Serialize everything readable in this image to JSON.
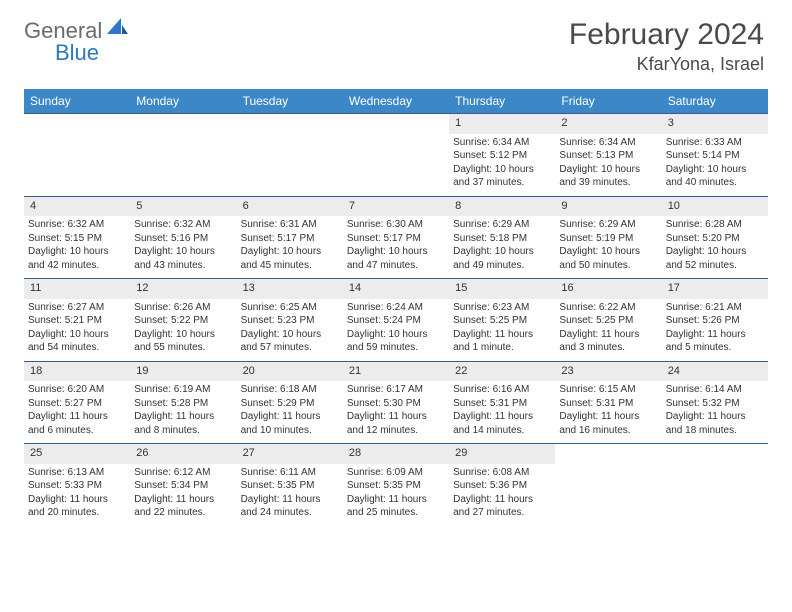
{
  "logo": {
    "text1": "General",
    "text2": "Blue"
  },
  "title": "February 2024",
  "location": "KfarYona, Israel",
  "colors": {
    "header_bg": "#3b87c8",
    "header_text": "#ffffff",
    "daynum_bg": "#ececec",
    "border": "#2f5f8f",
    "logo_gray": "#6b6b6b",
    "logo_blue": "#2b78c4"
  },
  "day_headers": [
    "Sunday",
    "Monday",
    "Tuesday",
    "Wednesday",
    "Thursday",
    "Friday",
    "Saturday"
  ],
  "weeks": [
    {
      "nums": [
        "",
        "",
        "",
        "",
        "1",
        "2",
        "3"
      ],
      "details": [
        null,
        null,
        null,
        null,
        {
          "sunrise": "Sunrise: 6:34 AM",
          "sunset": "Sunset: 5:12 PM",
          "day1": "Daylight: 10 hours",
          "day2": "and 37 minutes."
        },
        {
          "sunrise": "Sunrise: 6:34 AM",
          "sunset": "Sunset: 5:13 PM",
          "day1": "Daylight: 10 hours",
          "day2": "and 39 minutes."
        },
        {
          "sunrise": "Sunrise: 6:33 AM",
          "sunset": "Sunset: 5:14 PM",
          "day1": "Daylight: 10 hours",
          "day2": "and 40 minutes."
        }
      ]
    },
    {
      "nums": [
        "4",
        "5",
        "6",
        "7",
        "8",
        "9",
        "10"
      ],
      "details": [
        {
          "sunrise": "Sunrise: 6:32 AM",
          "sunset": "Sunset: 5:15 PM",
          "day1": "Daylight: 10 hours",
          "day2": "and 42 minutes."
        },
        {
          "sunrise": "Sunrise: 6:32 AM",
          "sunset": "Sunset: 5:16 PM",
          "day1": "Daylight: 10 hours",
          "day2": "and 43 minutes."
        },
        {
          "sunrise": "Sunrise: 6:31 AM",
          "sunset": "Sunset: 5:17 PM",
          "day1": "Daylight: 10 hours",
          "day2": "and 45 minutes."
        },
        {
          "sunrise": "Sunrise: 6:30 AM",
          "sunset": "Sunset: 5:17 PM",
          "day1": "Daylight: 10 hours",
          "day2": "and 47 minutes."
        },
        {
          "sunrise": "Sunrise: 6:29 AM",
          "sunset": "Sunset: 5:18 PM",
          "day1": "Daylight: 10 hours",
          "day2": "and 49 minutes."
        },
        {
          "sunrise": "Sunrise: 6:29 AM",
          "sunset": "Sunset: 5:19 PM",
          "day1": "Daylight: 10 hours",
          "day2": "and 50 minutes."
        },
        {
          "sunrise": "Sunrise: 6:28 AM",
          "sunset": "Sunset: 5:20 PM",
          "day1": "Daylight: 10 hours",
          "day2": "and 52 minutes."
        }
      ]
    },
    {
      "nums": [
        "11",
        "12",
        "13",
        "14",
        "15",
        "16",
        "17"
      ],
      "details": [
        {
          "sunrise": "Sunrise: 6:27 AM",
          "sunset": "Sunset: 5:21 PM",
          "day1": "Daylight: 10 hours",
          "day2": "and 54 minutes."
        },
        {
          "sunrise": "Sunrise: 6:26 AM",
          "sunset": "Sunset: 5:22 PM",
          "day1": "Daylight: 10 hours",
          "day2": "and 55 minutes."
        },
        {
          "sunrise": "Sunrise: 6:25 AM",
          "sunset": "Sunset: 5:23 PM",
          "day1": "Daylight: 10 hours",
          "day2": "and 57 minutes."
        },
        {
          "sunrise": "Sunrise: 6:24 AM",
          "sunset": "Sunset: 5:24 PM",
          "day1": "Daylight: 10 hours",
          "day2": "and 59 minutes."
        },
        {
          "sunrise": "Sunrise: 6:23 AM",
          "sunset": "Sunset: 5:25 PM",
          "day1": "Daylight: 11 hours",
          "day2": "and 1 minute."
        },
        {
          "sunrise": "Sunrise: 6:22 AM",
          "sunset": "Sunset: 5:25 PM",
          "day1": "Daylight: 11 hours",
          "day2": "and 3 minutes."
        },
        {
          "sunrise": "Sunrise: 6:21 AM",
          "sunset": "Sunset: 5:26 PM",
          "day1": "Daylight: 11 hours",
          "day2": "and 5 minutes."
        }
      ]
    },
    {
      "nums": [
        "18",
        "19",
        "20",
        "21",
        "22",
        "23",
        "24"
      ],
      "details": [
        {
          "sunrise": "Sunrise: 6:20 AM",
          "sunset": "Sunset: 5:27 PM",
          "day1": "Daylight: 11 hours",
          "day2": "and 6 minutes."
        },
        {
          "sunrise": "Sunrise: 6:19 AM",
          "sunset": "Sunset: 5:28 PM",
          "day1": "Daylight: 11 hours",
          "day2": "and 8 minutes."
        },
        {
          "sunrise": "Sunrise: 6:18 AM",
          "sunset": "Sunset: 5:29 PM",
          "day1": "Daylight: 11 hours",
          "day2": "and 10 minutes."
        },
        {
          "sunrise": "Sunrise: 6:17 AM",
          "sunset": "Sunset: 5:30 PM",
          "day1": "Daylight: 11 hours",
          "day2": "and 12 minutes."
        },
        {
          "sunrise": "Sunrise: 6:16 AM",
          "sunset": "Sunset: 5:31 PM",
          "day1": "Daylight: 11 hours",
          "day2": "and 14 minutes."
        },
        {
          "sunrise": "Sunrise: 6:15 AM",
          "sunset": "Sunset: 5:31 PM",
          "day1": "Daylight: 11 hours",
          "day2": "and 16 minutes."
        },
        {
          "sunrise": "Sunrise: 6:14 AM",
          "sunset": "Sunset: 5:32 PM",
          "day1": "Daylight: 11 hours",
          "day2": "and 18 minutes."
        }
      ]
    },
    {
      "nums": [
        "25",
        "26",
        "27",
        "28",
        "29",
        "",
        ""
      ],
      "details": [
        {
          "sunrise": "Sunrise: 6:13 AM",
          "sunset": "Sunset: 5:33 PM",
          "day1": "Daylight: 11 hours",
          "day2": "and 20 minutes."
        },
        {
          "sunrise": "Sunrise: 6:12 AM",
          "sunset": "Sunset: 5:34 PM",
          "day1": "Daylight: 11 hours",
          "day2": "and 22 minutes."
        },
        {
          "sunrise": "Sunrise: 6:11 AM",
          "sunset": "Sunset: 5:35 PM",
          "day1": "Daylight: 11 hours",
          "day2": "and 24 minutes."
        },
        {
          "sunrise": "Sunrise: 6:09 AM",
          "sunset": "Sunset: 5:35 PM",
          "day1": "Daylight: 11 hours",
          "day2": "and 25 minutes."
        },
        {
          "sunrise": "Sunrise: 6:08 AM",
          "sunset": "Sunset: 5:36 PM",
          "day1": "Daylight: 11 hours",
          "day2": "and 27 minutes."
        },
        null,
        null
      ]
    }
  ]
}
